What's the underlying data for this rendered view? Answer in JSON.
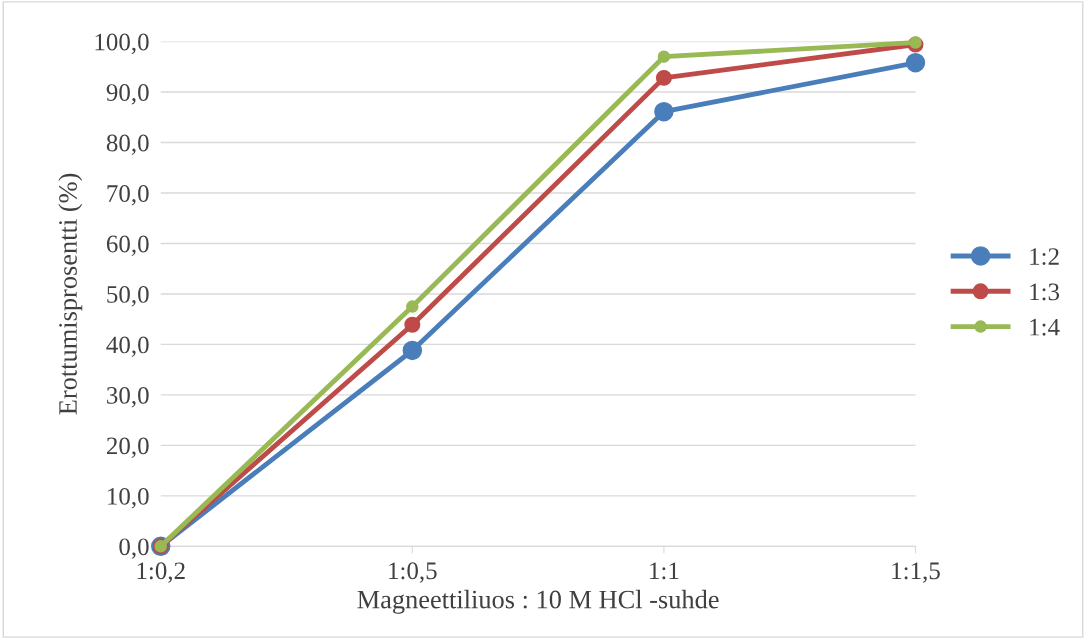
{
  "chart_data": {
    "type": "line",
    "xlabel": "Magneettiliuos : 10 M HCl -suhde",
    "ylabel": "Erottumisprosentti (%)",
    "categories": [
      "1:0,2",
      "1:0,5",
      "1:1",
      "1:1,5"
    ],
    "series": [
      {
        "name": "1:2",
        "color": "#4a7ebb",
        "values": [
          0,
          38.8,
          86.1,
          95.8
        ]
      },
      {
        "name": "1:3",
        "color": "#be4b48",
        "values": [
          0,
          43.9,
          92.8,
          99.4
        ]
      },
      {
        "name": "1:4",
        "color": "#98b954",
        "values": [
          0,
          47.5,
          97.0,
          99.8
        ]
      }
    ],
    "ylim": [
      0,
      100
    ],
    "yticks": [
      {
        "value": 0,
        "label": "0,0"
      },
      {
        "value": 10,
        "label": "10,0"
      },
      {
        "value": 20,
        "label": "20,0"
      },
      {
        "value": 30,
        "label": "30,0"
      },
      {
        "value": 40,
        "label": "40,0"
      },
      {
        "value": 50,
        "label": "50,0"
      },
      {
        "value": 60,
        "label": "60,0"
      },
      {
        "value": 70,
        "label": "70,0"
      },
      {
        "value": 80,
        "label": "80,0"
      },
      {
        "value": 90,
        "label": "90,0"
      },
      {
        "value": 100,
        "label": "100,0"
      }
    ],
    "grid": "y",
    "legend": "right",
    "marker": "circle",
    "line_style": "solid"
  }
}
